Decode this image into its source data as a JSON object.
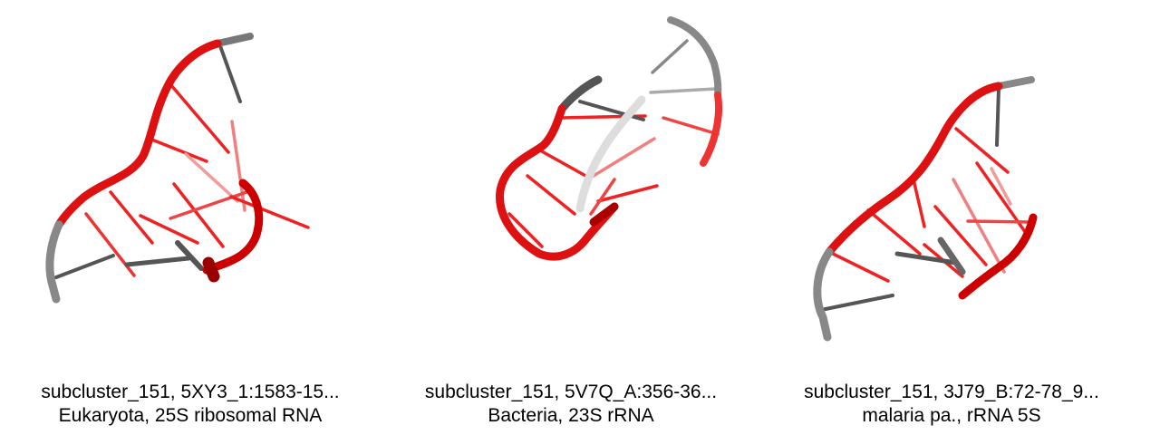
{
  "panels": [
    {
      "line1": "subcluster_151, 5XY3_1:1583-15...",
      "line2": "Eukaryota, 25S ribosomal RNA"
    },
    {
      "line1": "subcluster_151, 5V7Q_A:356-36...",
      "line2": "Bacteria, 23S rRNA"
    },
    {
      "line1": "subcluster_151, 3J79_B:72-78_9...",
      "line2": "malaria pa., rRNA 5S"
    }
  ],
  "colors": {
    "strand_red": "#e11515",
    "strand_dark_red": "#b40000",
    "strand_gray": "#808080",
    "base_red": "#ee3030",
    "base_gray": "#666666"
  }
}
